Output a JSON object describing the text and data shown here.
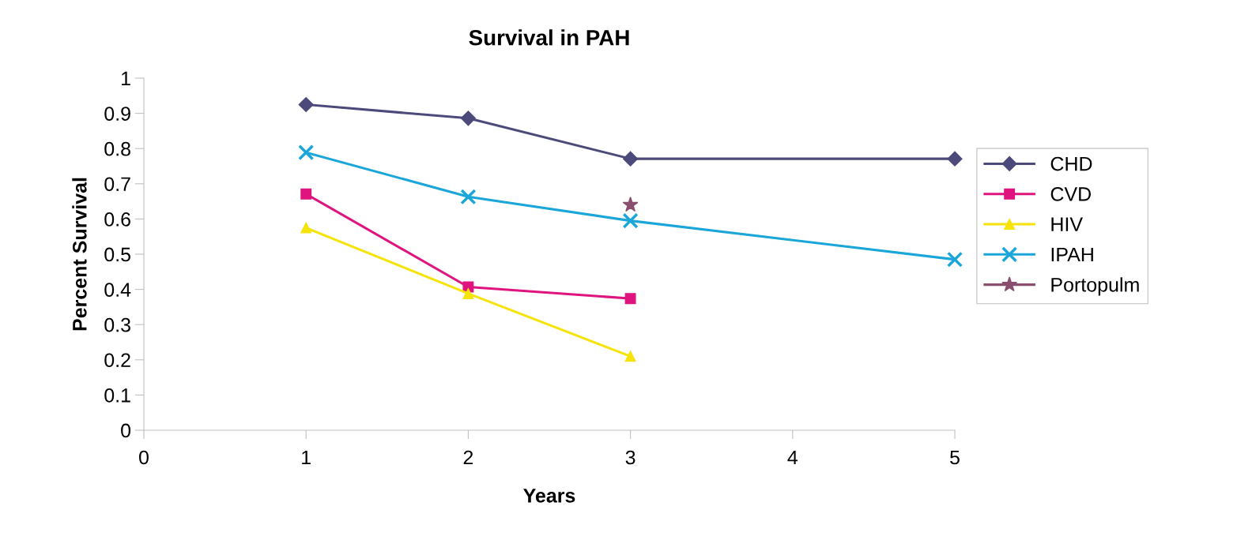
{
  "chart_data": {
    "type": "line",
    "title": "Survival in PAH",
    "xlabel": "Years",
    "ylabel": "Percent Survival",
    "xlim": [
      0,
      5
    ],
    "xticks": [
      0,
      1,
      2,
      3,
      4,
      5
    ],
    "ylim": [
      0,
      1
    ],
    "yticks": [
      0,
      0.1,
      0.2,
      0.3,
      0.4,
      0.5,
      0.6,
      0.7,
      0.8,
      0.9,
      1
    ],
    "grid": false,
    "legend": "right",
    "line_style": "solid",
    "series": [
      {
        "name": "CHD",
        "color": "#4b4a7a",
        "marker": "diamond",
        "x": [
          1,
          2,
          3,
          5
        ],
        "values": [
          0.925,
          0.886,
          0.771,
          0.771
        ]
      },
      {
        "name": "CVD",
        "color": "#e0147e",
        "marker": "square",
        "x": [
          1,
          2,
          3
        ],
        "values": [
          0.671,
          0.407,
          0.374
        ]
      },
      {
        "name": "HIV",
        "color": "#f5e30a",
        "marker": "triangle",
        "x": [
          1,
          2,
          3
        ],
        "values": [
          0.575,
          0.388,
          0.21
        ]
      },
      {
        "name": "IPAH",
        "color": "#1aa6d8",
        "marker": "cross",
        "x": [
          1,
          2,
          3,
          5
        ],
        "values": [
          0.789,
          0.663,
          0.595,
          0.485
        ]
      },
      {
        "name": "Portopulm",
        "color": "#8a4f6e",
        "marker": "star",
        "x": [
          3
        ],
        "values": [
          0.64
        ]
      }
    ]
  }
}
